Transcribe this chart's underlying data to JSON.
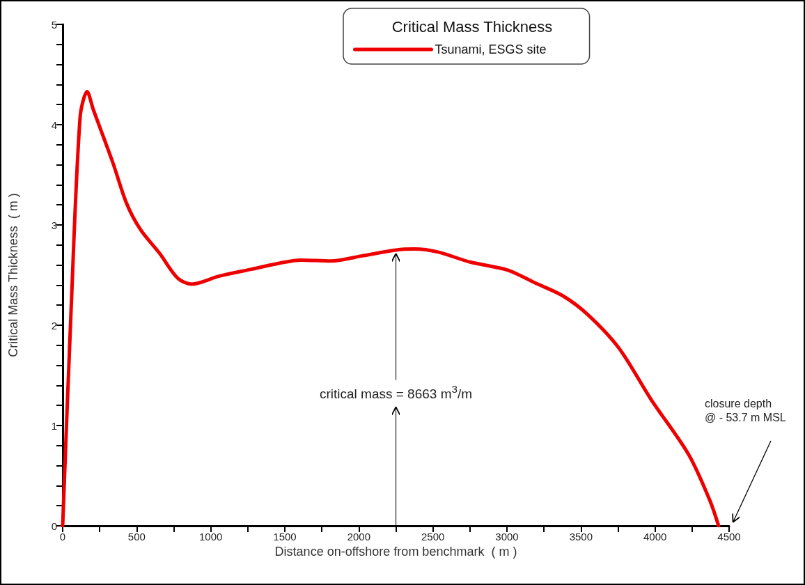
{
  "chart_data": {
    "type": "line",
    "legend_title": "Critical Mass Thickness",
    "xlabel": "Distance on-offshore from benchmark  ( m )",
    "ylabel": "Critical Mass Thickness  ( m )",
    "series": [
      {
        "name": "Tsunami, ESGS site",
        "color": "#ee0000",
        "x": [
          0,
          56,
          118,
          165,
          207,
          339,
          433,
          527,
          653,
          776,
          870,
          1058,
          1279,
          1467,
          1608,
          1810,
          2017,
          2252,
          2375,
          2534,
          2751,
          3005,
          3193,
          3381,
          3550,
          3757,
          3973,
          4227,
          4368,
          4429
        ],
        "values": [
          0,
          2.12,
          4.08,
          4.33,
          4.15,
          3.62,
          3.21,
          2.95,
          2.72,
          2.47,
          2.41,
          2.49,
          2.56,
          2.62,
          2.65,
          2.64,
          2.69,
          2.75,
          2.76,
          2.73,
          2.63,
          2.55,
          2.42,
          2.29,
          2.1,
          1.77,
          1.26,
          0.71,
          0.26,
          0
        ]
      }
    ],
    "xlim": [
      0,
      4500
    ],
    "ylim": [
      0,
      5
    ],
    "xticks": [
      0,
      {
        "value": 250,
        "label": null
      },
      500,
      {
        "value": 750,
        "label": null
      },
      1000,
      {
        "value": 1250,
        "label": null
      },
      1500,
      {
        "value": 1750,
        "label": null
      },
      2000,
      {
        "value": 2250,
        "label": null
      },
      2500,
      {
        "value": 2750,
        "label": null
      },
      3000,
      {
        "value": 3250,
        "label": null
      },
      3500,
      {
        "value": 3750,
        "label": null
      },
      4000,
      {
        "value": 4250,
        "label": null
      },
      4500
    ],
    "yticks": [
      0,
      {
        "value": 0.2,
        "label": null
      },
      {
        "value": 0.4,
        "label": null
      },
      {
        "value": 0.6,
        "label": null
      },
      {
        "value": 0.8,
        "label": null
      },
      1,
      {
        "value": 1.2,
        "label": null
      },
      {
        "value": 1.4,
        "label": null
      },
      {
        "value": 1.6,
        "label": null
      },
      {
        "value": 1.8,
        "label": null
      },
      2,
      {
        "value": 2.2,
        "label": null
      },
      {
        "value": 2.4,
        "label": null
      },
      {
        "value": 2.6,
        "label": null
      },
      {
        "value": 2.8,
        "label": null
      },
      3,
      {
        "value": 3.2,
        "label": null
      },
      {
        "value": 3.4,
        "label": null
      },
      {
        "value": 3.6,
        "label": null
      },
      {
        "value": 3.8,
        "label": null
      },
      4,
      {
        "value": 4.2,
        "label": null
      },
      {
        "value": 4.4,
        "label": null
      },
      {
        "value": 4.6,
        "label": null
      },
      {
        "value": 4.8,
        "label": null
      },
      5
    ],
    "annotations": [
      {
        "text": "critical mass = 8663 m$^{3}$/m",
        "x": 2250,
        "y": 2.75
      },
      "closure depth\n@ - 53.7 m MSL"
    ],
    "grid": false,
    "legend": "top",
    "marker": "none",
    "line_style": "solid"
  }
}
